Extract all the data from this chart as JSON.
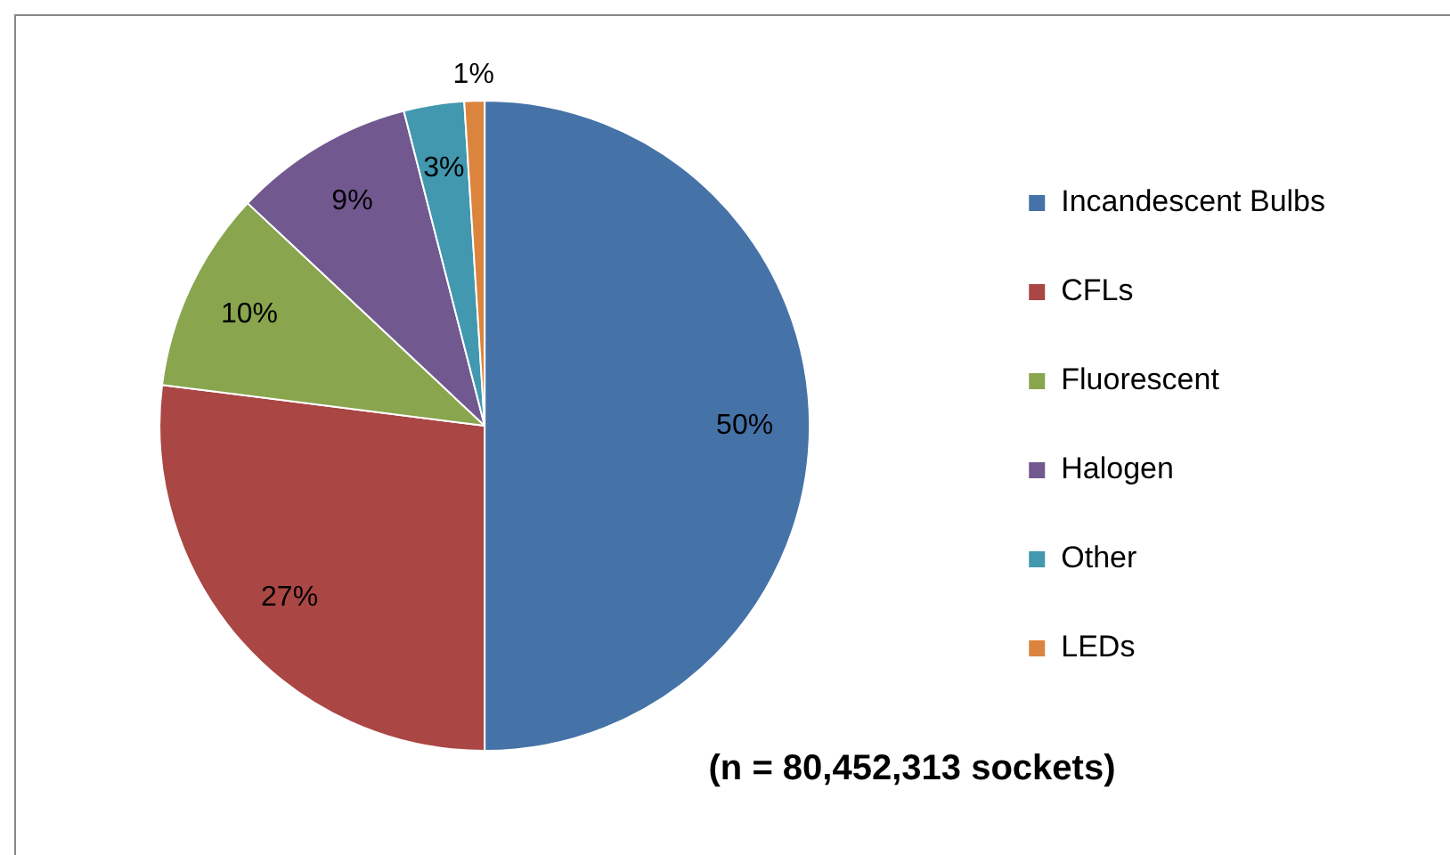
{
  "chart_data": {
    "type": "pie",
    "categories": [
      "Incandescent Bulbs",
      "CFLs",
      "Fluorescent",
      "Halogen",
      "Other",
      "LEDs"
    ],
    "values": [
      50,
      27,
      10,
      9,
      3,
      1
    ],
    "colors": [
      "#4572a7",
      "#aa4643",
      "#89a54e",
      "#71588f",
      "#4198af",
      "#db843d"
    ],
    "value_labels": [
      "50%",
      "27%",
      "10%",
      "9%",
      "3%",
      "1%"
    ],
    "legend": "right",
    "annotations": [
      "(n = 80,452,313 sockets)"
    ]
  }
}
